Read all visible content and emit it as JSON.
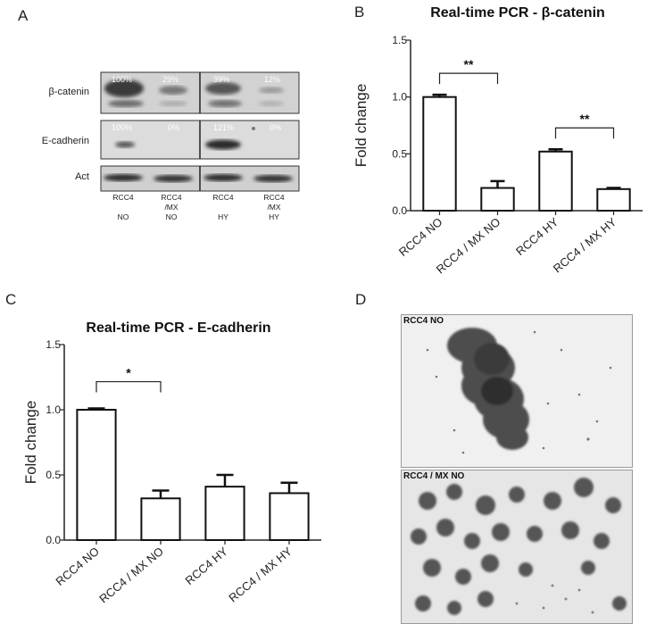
{
  "panels": {
    "A": {
      "letter": "A",
      "rows": [
        {
          "name": "β-catenin",
          "percents": [
            "100%",
            "29%",
            "39%",
            "12%"
          ]
        },
        {
          "name": "E-cadherin",
          "percents": [
            "100%",
            "0%",
            "121%",
            "0%"
          ]
        },
        {
          "name": "Act",
          "percents": []
        }
      ],
      "lanes": [
        {
          "line1": "RCC4",
          "line2": "",
          "line3": "NO"
        },
        {
          "line1": "RCC4",
          "line2": "/MX",
          "line3": "NO"
        },
        {
          "line1": "RCC4",
          "line2": "",
          "line3": "HY"
        },
        {
          "line1": "RCC4",
          "line2": "/MX",
          "line3": "HY"
        }
      ]
    },
    "B": {
      "letter": "B"
    },
    "C": {
      "letter": "C"
    },
    "D": {
      "letter": "D",
      "photo_top_label": "RCC4 NO",
      "photo_bottom_label": "RCC4 / MX NO"
    }
  },
  "chart_data": [
    {
      "type": "bar",
      "title": "Real-time PCR - β-catenin",
      "ylabel": "Fold change",
      "xlabel": "",
      "categories": [
        "RCC4 NO",
        "RCC4 / MX NO",
        "RCC4 HY",
        "RCC4 / MX HY"
      ],
      "values": [
        1.0,
        0.2,
        0.52,
        0.19
      ],
      "errors": [
        0.02,
        0.06,
        0.02,
        0.01
      ],
      "ylim": [
        0,
        1.5
      ],
      "yticks": [
        "0.0",
        "0.5",
        "1.0",
        "1.5"
      ],
      "significance": [
        {
          "from": 0,
          "to": 1,
          "label": "**"
        },
        {
          "from": 2,
          "to": 3,
          "label": "**"
        }
      ]
    },
    {
      "type": "bar",
      "title": "Real-time PCR - E-cadherin",
      "ylabel": "Fold change",
      "xlabel": "",
      "categories": [
        "RCC4 NO",
        "RCC4 / MX NO",
        "RCC4 HY",
        "RCC4 / MX HY"
      ],
      "values": [
        1.0,
        0.32,
        0.41,
        0.36
      ],
      "errors": [
        0.01,
        0.06,
        0.09,
        0.08
      ],
      "ylim": [
        0,
        1.5
      ],
      "yticks": [
        "0.0",
        "0.5",
        "1.0",
        "1.5"
      ],
      "significance": [
        {
          "from": 0,
          "to": 1,
          "label": "*"
        }
      ]
    }
  ]
}
